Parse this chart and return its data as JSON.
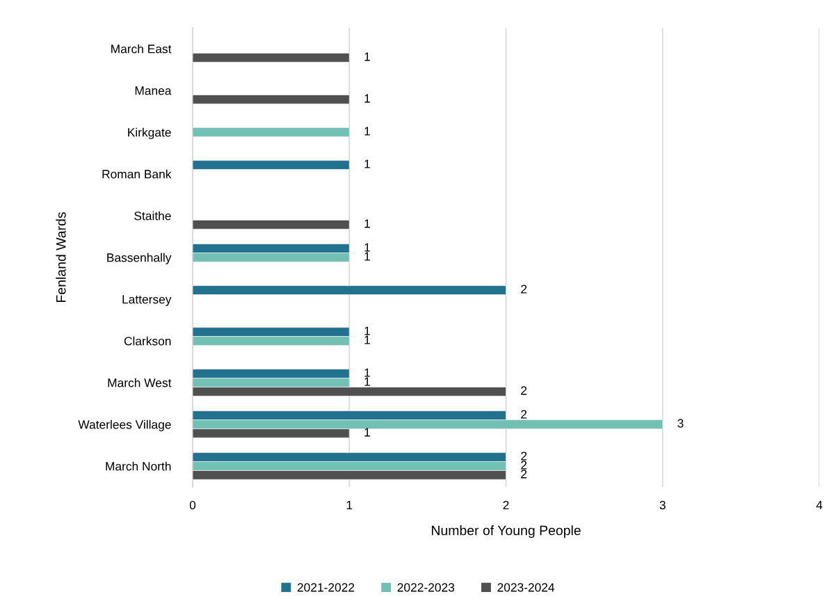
{
  "chart_data": {
    "type": "bar",
    "orientation": "horizontal",
    "xlabel": "Number of Young People",
    "ylabel": "Fenland Wards",
    "categories": [
      "March East",
      "Manea",
      "Kirkgate",
      "Roman Bank",
      "Staithe",
      "Bassenhally",
      "Lattersey",
      "Clarkson",
      "March West",
      "Waterlees Village",
      "March North"
    ],
    "series": [
      {
        "name": "2021-2022",
        "color": "#22718f",
        "values": [
          null,
          null,
          null,
          1,
          null,
          1,
          2,
          1,
          1,
          2,
          2
        ]
      },
      {
        "name": "2022-2023",
        "color": "#70c1b3",
        "values": [
          null,
          null,
          1,
          null,
          null,
          1,
          null,
          1,
          1,
          3,
          2
        ]
      },
      {
        "name": "2023-2024",
        "color": "#505050",
        "values": [
          1,
          1,
          null,
          null,
          1,
          null,
          null,
          null,
          2,
          1,
          2
        ]
      }
    ],
    "xlim": [
      0,
      4
    ],
    "xticks": [
      0,
      1,
      2,
      3,
      4
    ],
    "grid": "x",
    "legend": "bottom",
    "data_labels": true
  }
}
